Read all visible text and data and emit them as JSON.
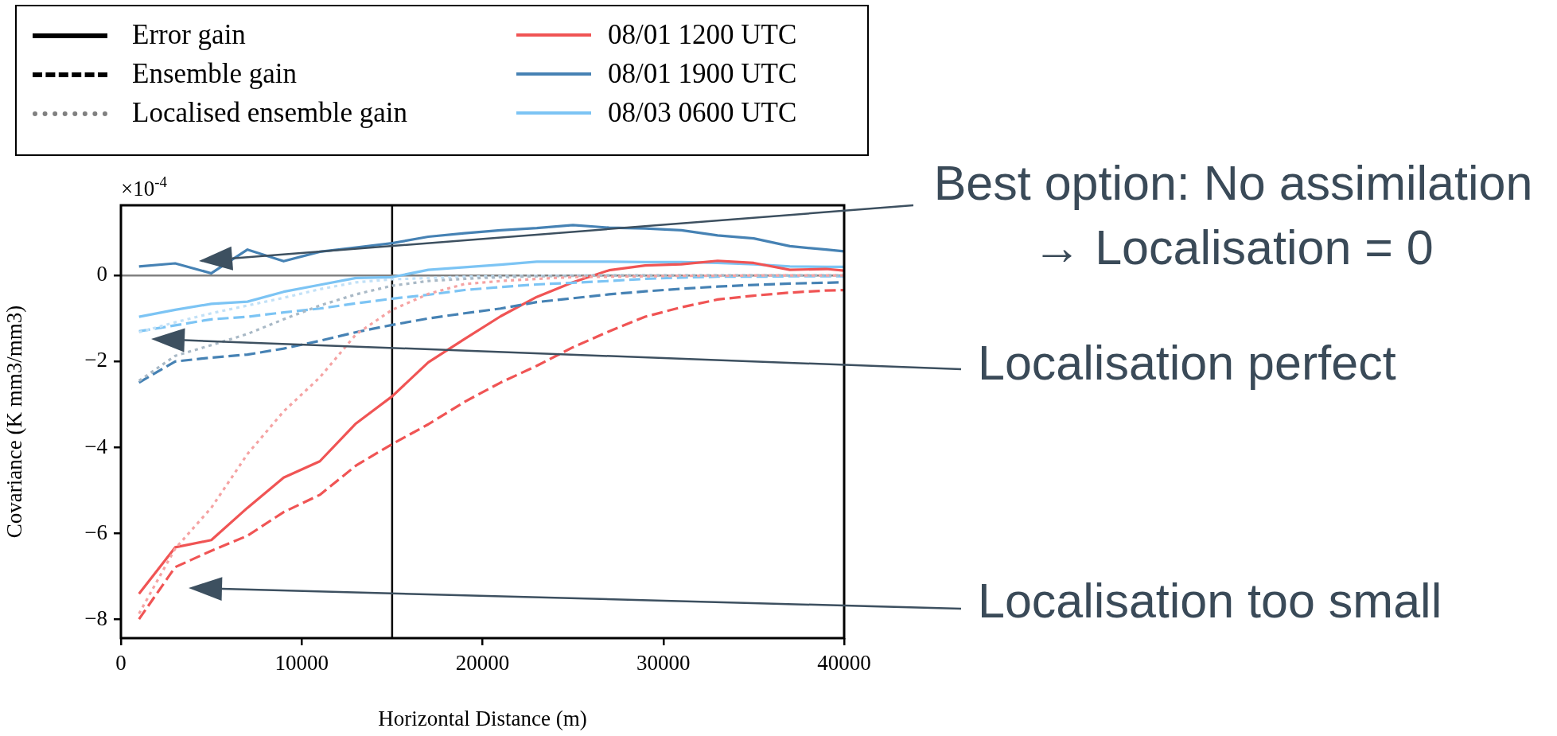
{
  "chart_data": {
    "type": "line",
    "xlabel": "Horizontal Distance (m)",
    "ylabel": "Covariance (K mm3/mm3)",
    "x": [
      1000,
      3000,
      5000,
      7000,
      9000,
      11000,
      13000,
      15000,
      17000,
      19000,
      21000,
      23000,
      25000,
      27000,
      29000,
      31000,
      33000,
      35000,
      37000,
      39000,
      40000
    ],
    "xlim": [
      0,
      40000
    ],
    "xticks": [
      0,
      10000,
      20000,
      30000,
      40000
    ],
    "ylim": [
      -8.43,
      1.63
    ],
    "yticks": [
      {
        "value": 0,
        "label": "0"
      },
      {
        "value": -2,
        "label": "−2"
      },
      {
        "value": -4,
        "label": "−4"
      },
      {
        "value": -6,
        "label": "−6"
      },
      {
        "value": -8,
        "label": "−8"
      }
    ],
    "grid": false,
    "legend": "top",
    "series": [
      {
        "color": "#f5a3a3",
        "line_style": "dotted",
        "values": [
          -7.86,
          -6.35,
          -5.4,
          -4.15,
          -3.16,
          -2.37,
          -1.37,
          -0.8,
          -0.43,
          -0.2,
          -0.13,
          -0.08,
          -0.04,
          -0.03,
          -0.02,
          -0.01,
          -0.01,
          0,
          0,
          0,
          0
        ]
      },
      {
        "color": "#a9b9c6",
        "line_style": "dotted",
        "values": [
          -2.45,
          -1.87,
          -1.62,
          -1.36,
          -1.02,
          -0.7,
          -0.44,
          -0.24,
          -0.13,
          -0.08,
          -0.04,
          -0.02,
          -0.01,
          0,
          0,
          0,
          0,
          0,
          0,
          0,
          0
        ]
      },
      {
        "color": "#c2e1f7",
        "line_style": "dotted",
        "values": [
          -1.32,
          -1.09,
          -0.88,
          -0.7,
          -0.52,
          -0.32,
          -0.16,
          -0.09,
          -0.06,
          -0.03,
          -0.02,
          -0.01,
          0,
          0,
          0,
          0,
          0,
          0,
          0,
          0,
          0
        ]
      },
      {
        "color": "#f05454",
        "line_style": "dashed",
        "values": [
          -7.99,
          -6.78,
          -6.4,
          -6.05,
          -5.5,
          -5.1,
          -4.42,
          -3.92,
          -3.46,
          -2.94,
          -2.49,
          -2.1,
          -1.67,
          -1.3,
          -0.96,
          -0.74,
          -0.56,
          -0.47,
          -0.4,
          -0.35,
          -0.34
        ]
      },
      {
        "color": "#4682b4",
        "line_style": "dashed",
        "values": [
          -2.49,
          -2.0,
          -1.91,
          -1.84,
          -1.7,
          -1.52,
          -1.32,
          -1.15,
          -1.0,
          -0.88,
          -0.77,
          -0.62,
          -0.53,
          -0.44,
          -0.37,
          -0.31,
          -0.26,
          -0.22,
          -0.19,
          -0.17,
          -0.16
        ]
      },
      {
        "color": "#7cc4f4",
        "line_style": "dashed",
        "values": [
          -1.3,
          -1.16,
          -1.02,
          -0.96,
          -0.86,
          -0.77,
          -0.65,
          -0.54,
          -0.45,
          -0.34,
          -0.27,
          -0.21,
          -0.17,
          -0.13,
          -0.08,
          -0.05,
          -0.03,
          -0.03,
          -0.02,
          -0.02,
          -0.02
        ]
      },
      {
        "name": "08/01 1200 UTC",
        "color": "#f05454",
        "line_style": "solid",
        "values": [
          -7.4,
          -6.32,
          -6.15,
          -5.4,
          -4.7,
          -4.32,
          -3.44,
          -2.81,
          -2.02,
          -1.48,
          -0.95,
          -0.5,
          -0.16,
          0.12,
          0.23,
          0.26,
          0.34,
          0.29,
          0.13,
          0.15,
          0.11
        ]
      },
      {
        "name": "08/01 1900 UTC",
        "color": "#4682b4",
        "line_style": "solid",
        "values": [
          0.21,
          0.28,
          0.05,
          0.6,
          0.33,
          0.55,
          0.65,
          0.75,
          0.9,
          0.98,
          1.05,
          1.1,
          1.17,
          1.11,
          1.09,
          1.05,
          0.93,
          0.86,
          0.68,
          0.6,
          0.56
        ]
      },
      {
        "name": "08/03 0600 UTC",
        "color": "#7cc4f4",
        "line_style": "solid",
        "values": [
          -0.96,
          -0.8,
          -0.66,
          -0.61,
          -0.38,
          -0.22,
          -0.06,
          -0.04,
          0.13,
          0.19,
          0.25,
          0.32,
          0.32,
          0.32,
          0.31,
          0.31,
          0.29,
          0.26,
          0.21,
          0.2,
          0.2
        ]
      }
    ],
    "ref_lines": [
      {
        "axis": "x",
        "value": 15000,
        "color": "#000000"
      },
      {
        "axis": "y",
        "value": 0,
        "color": "#808080"
      }
    ],
    "annotations": [
      "×10$^{-4}$",
      "Error gain",
      "Ensemble gain",
      "Localised ensemble gain",
      "Best option: No assimilation → Localisation = 0",
      "Localisation perfect",
      "Localisation too small"
    ]
  }
}
